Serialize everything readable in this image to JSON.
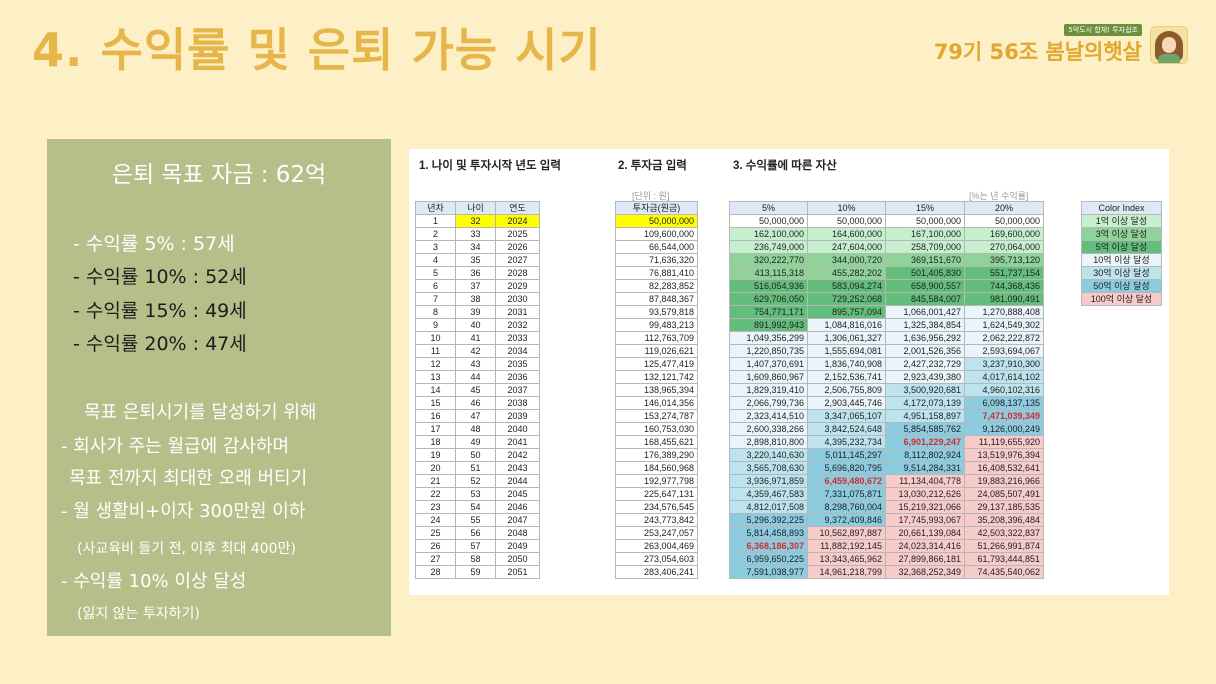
{
  "title": "4. 수익률 및 은퇴 가능 시기",
  "brand": {
    "tag": "5억도시 합체! 투자쉽조",
    "name": "79기 56조 봄날의햇살"
  },
  "panel": {
    "goal": "은퇴 목표 자금 : 62억",
    "rates": [
      "- 수익률   5% : 57세",
      "- 수익률 10% : 52세",
      "- 수익률 15% : 49세",
      "- 수익률 20% : 47세"
    ],
    "intro": "목표 은퇴시기를 달성하기 위해",
    "b1": "- 회사가 주는 월급에 감사하며",
    "b1b": "목표 전까지 최대한 오래 버티기",
    "b2": "- 월 생활비+이자 300만원 이하",
    "b2s": "(사교육비 들기 전, 이후 최대 400만)",
    "b3": "- 수익률 10% 이상 달성",
    "b3s": "(잃지 않는 투자하기)"
  },
  "sheet": {
    "h1": "1. 나이 및 투자시작 년도 입력",
    "h2": "2. 투자금 입력",
    "h3": "3. 수익률에 따른 자산",
    "unit_won": "[단위 : 원]",
    "unit_rate": "[%는 년 수익률]",
    "cols_a": [
      "년차",
      "나이",
      "연도"
    ],
    "col_inv": "투자금(원금)",
    "cols_r": [
      "5%",
      "10%",
      "15%",
      "20%"
    ],
    "color_index_header": "Color Index",
    "color_index": [
      {
        "label": "1억 이상 달성",
        "color": "#c6efce"
      },
      {
        "label": "3억 이상 달성",
        "color": "#8fd398"
      },
      {
        "label": "5억 이상 달성",
        "color": "#63be7b"
      },
      {
        "label": "10억 이상 달성",
        "color": "#e9f4fb"
      },
      {
        "label": "30억 이상 달성",
        "color": "#bde3ef"
      },
      {
        "label": "50억 이상 달성",
        "color": "#8ccce0"
      },
      {
        "label": "100억 이상 달성",
        "color": "#f8cbcb"
      }
    ],
    "rows": [
      [
        "1",
        "32",
        "2024",
        "50,000,000",
        "50,000,000",
        "50,000,000",
        "50,000,000",
        "50,000,000"
      ],
      [
        "2",
        "33",
        "2025",
        "109,600,000",
        "162,100,000",
        "164,600,000",
        "167,100,000",
        "169,600,000"
      ],
      [
        "3",
        "34",
        "2026",
        "66,544,000",
        "236,749,000",
        "247,604,000",
        "258,709,000",
        "270,064,000"
      ],
      [
        "4",
        "35",
        "2027",
        "71,636,320",
        "320,222,770",
        "344,000,720",
        "369,151,670",
        "395,713,120"
      ],
      [
        "5",
        "36",
        "2028",
        "76,881,410",
        "413,115,318",
        "455,282,202",
        "501,405,830",
        "551,737,154"
      ],
      [
        "6",
        "37",
        "2029",
        "82,283,852",
        "516,054,936",
        "583,094,274",
        "658,900,557",
        "744,368,436"
      ],
      [
        "7",
        "38",
        "2030",
        "87,848,367",
        "629,706,050",
        "729,252,068",
        "845,584,007",
        "981,090,491"
      ],
      [
        "8",
        "39",
        "2031",
        "93,579,818",
        "754,771,171",
        "895,757,094",
        "1,066,001,427",
        "1,270,888,408"
      ],
      [
        "9",
        "40",
        "2032",
        "99,483,213",
        "891,992,943",
        "1,084,816,016",
        "1,325,384,854",
        "1,624,549,302"
      ],
      [
        "10",
        "41",
        "2033",
        "112,763,709",
        "1,049,356,299",
        "1,306,061,327",
        "1,636,956,292",
        "2,062,222,872"
      ],
      [
        "11",
        "42",
        "2034",
        "119,026,621",
        "1,220,850,735",
        "1,555,694,081",
        "2,001,526,356",
        "2,593,694,067"
      ],
      [
        "12",
        "43",
        "2035",
        "125,477,419",
        "1,407,370,691",
        "1,836,740,908",
        "2,427,232,729",
        "3,237,910,300"
      ],
      [
        "13",
        "44",
        "2036",
        "132,121,742",
        "1,609,860,967",
        "2,152,536,741",
        "2,923,439,380",
        "4,017,614,102"
      ],
      [
        "14",
        "45",
        "2037",
        "138,965,394",
        "1,829,319,410",
        "2,506,755,809",
        "3,500,920,681",
        "4,960,102,316"
      ],
      [
        "15",
        "46",
        "2038",
        "146,014,356",
        "2,066,799,736",
        "2,903,445,746",
        "4,172,073,139",
        "6,098,137,135"
      ],
      [
        "16",
        "47",
        "2039",
        "153,274,787",
        "2,323,414,510",
        "3,347,065,107",
        "4,951,158,897",
        "7,471,039,349"
      ],
      [
        "17",
        "48",
        "2040",
        "160,753,030",
        "2,600,338,266",
        "3,842,524,648",
        "5,854,585,762",
        "9,126,000,249"
      ],
      [
        "18",
        "49",
        "2041",
        "168,455,621",
        "2,898,810,800",
        "4,395,232,734",
        "6,901,229,247",
        "11,119,655,920"
      ],
      [
        "19",
        "50",
        "2042",
        "176,389,290",
        "3,220,140,630",
        "5,011,145,297",
        "8,112,802,924",
        "13,519,976,394"
      ],
      [
        "20",
        "51",
        "2043",
        "184,560,968",
        "3,565,708,630",
        "5,696,820,795",
        "9,514,284,331",
        "16,408,532,641"
      ],
      [
        "21",
        "52",
        "2044",
        "192,977,798",
        "3,936,971,859",
        "6,459,480,672",
        "11,134,404,778",
        "19,883,216,966"
      ],
      [
        "22",
        "53",
        "2045",
        "225,647,131",
        "4,359,467,583",
        "7,331,075,871",
        "13,030,212,626",
        "24,085,507,491"
      ],
      [
        "23",
        "54",
        "2046",
        "234,576,545",
        "4,812,017,508",
        "8,298,760,004",
        "15,219,321,066",
        "29,137,185,535"
      ],
      [
        "24",
        "55",
        "2047",
        "243,773,842",
        "5,296,392,225",
        "9,372,409,846",
        "17,745,993,067",
        "35,208,396,484"
      ],
      [
        "25",
        "56",
        "2048",
        "253,247,057",
        "5,814,458,893",
        "10,562,897,887",
        "20,661,139,084",
        "42,503,322,837"
      ],
      [
        "26",
        "57",
        "2049",
        "263,004,469",
        "6,368,186,307",
        "11,882,192,145",
        "24,023,314,416",
        "51,266,991,874"
      ],
      [
        "27",
        "58",
        "2050",
        "273,054,603",
        "6,959,650,225",
        "13,343,465,962",
        "27,899,866,181",
        "61,793,444,851"
      ],
      [
        "28",
        "59",
        "2051",
        "283,406,241",
        "7,591,038,977",
        "14,961,218,799",
        "32,368,252,349",
        "74,435,540,062"
      ]
    ],
    "highlights": [
      {
        "row": 15,
        "col": 3
      },
      {
        "row": 17,
        "col": 2
      },
      {
        "row": 20,
        "col": 1
      },
      {
        "row": 25,
        "col": 0
      }
    ]
  }
}
